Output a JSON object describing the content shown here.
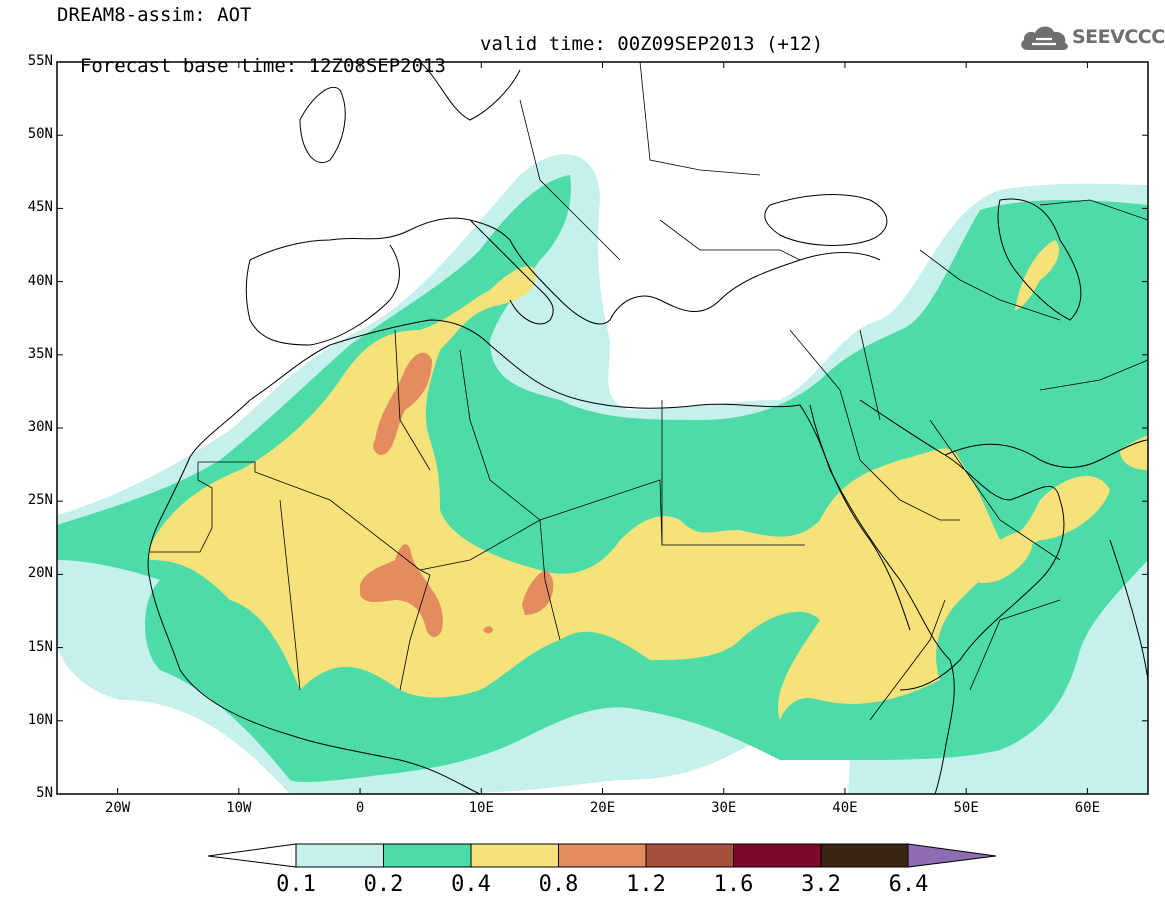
{
  "header": {
    "line1": "DREAM8-assim: AOT",
    "line2_base": "Forecast base time: 12Z08SEP2013",
    "line2_valid": "valid time: 00Z09SEP2013 (+12)"
  },
  "logo": {
    "text": "SEEVCCC",
    "icon": "cloud-icon"
  },
  "map": {
    "projection": "equirectangular",
    "lon_range": [
      -25,
      65
    ],
    "lat_range": [
      5,
      55
    ],
    "lat_ticks": [
      "55N",
      "50N",
      "45N",
      "40N",
      "35N",
      "30N",
      "25N",
      "20N",
      "15N",
      "10N",
      "5N"
    ],
    "lon_ticks": [
      "20W",
      "10W",
      "0",
      "10E",
      "20E",
      "30E",
      "40E",
      "50E",
      "60E"
    ]
  },
  "colorbar": {
    "labels": [
      "0.1",
      "0.2",
      "0.4",
      "0.8",
      "1.2",
      "1.6",
      "3.2",
      "6.4"
    ],
    "colors": [
      "#c5f0eb",
      "#4ddca8",
      "#f5e27a",
      "#e48c5f",
      "#a5513e",
      "#7d0a2a",
      "#3b2412",
      "#8d6cb2"
    ],
    "under_color": "#ffffff"
  }
}
